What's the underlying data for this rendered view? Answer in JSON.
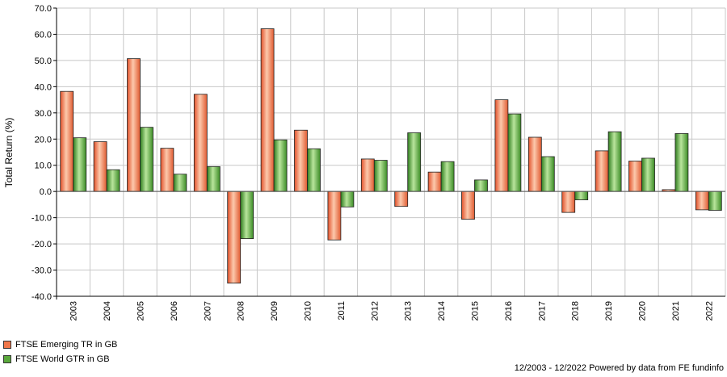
{
  "chart_data": {
    "type": "bar",
    "title": "",
    "xlabel": "",
    "ylabel": "Total Return (%)",
    "ylim": [
      -40,
      70
    ],
    "yticks": [
      "70.0",
      "60.0",
      "50.0",
      "40.0",
      "30.0",
      "20.0",
      "10.0",
      "0.0",
      "-10.0",
      "-20.0",
      "-30.0",
      "-40.0"
    ],
    "categories": [
      "2003",
      "2004",
      "2005",
      "2006",
      "2007",
      "2008",
      "2009",
      "2010",
      "2011",
      "2012",
      "2013",
      "2014",
      "2015",
      "2016",
      "2017",
      "2018",
      "2019",
      "2020",
      "2021",
      "2022"
    ],
    "grid": true,
    "legend_position": "bottom-left",
    "series": [
      {
        "name": "FTSE Emerging TR in GB",
        "color": "#f0774a",
        "values": [
          38.2,
          19.0,
          50.7,
          16.5,
          37.1,
          -35.0,
          62.1,
          23.4,
          -18.5,
          12.4,
          -5.7,
          7.4,
          -10.6,
          35.0,
          20.7,
          -8.0,
          15.5,
          11.6,
          0.7,
          -7.0
        ]
      },
      {
        "name": "FTSE World GTR in GB",
        "color": "#5aa83c",
        "values": [
          20.5,
          8.3,
          24.5,
          6.6,
          9.5,
          -18.0,
          19.7,
          16.3,
          -5.9,
          11.9,
          22.4,
          11.4,
          4.4,
          29.6,
          13.3,
          -3.2,
          22.8,
          12.7,
          22.1,
          -7.2
        ]
      }
    ]
  },
  "footer": "12/2003 - 12/2022 Powered by data from FE fundinfo"
}
